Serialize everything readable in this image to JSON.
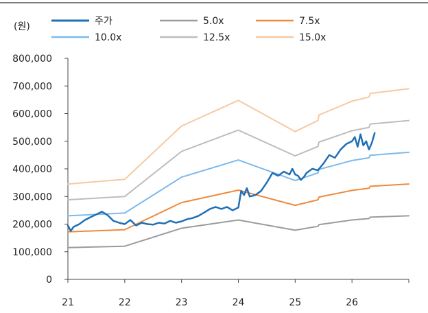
{
  "chart_data": {
    "type": "line",
    "unit_label": "(원)",
    "x_ticks": [
      "21",
      "22",
      "23",
      "24",
      "25",
      "26"
    ],
    "y_ticks": [
      "800,000",
      "700,000",
      "600,000",
      "500,000",
      "400,000",
      "300,000",
      "200,000",
      "100,000",
      "0"
    ],
    "ylim": [
      0,
      800000
    ],
    "xlim": [
      2021,
      2027
    ],
    "grid": false,
    "legend_position": "top",
    "series": [
      {
        "name": "주가",
        "color": "#1f6fb5",
        "width": 2.5,
        "x": [
          2021.0,
          2021.05,
          2021.1,
          2021.2,
          2021.3,
          2021.4,
          2021.5,
          2021.6,
          2021.7,
          2021.8,
          2021.9,
          2022.0,
          2022.1,
          2022.2,
          2022.3,
          2022.4,
          2022.5,
          2022.6,
          2022.7,
          2022.8,
          2022.9,
          2023.0,
          2023.1,
          2023.2,
          2023.3,
          2023.4,
          2023.5,
          2023.6,
          2023.7,
          2023.8,
          2023.9,
          2024.0,
          2024.05,
          2024.1,
          2024.15,
          2024.2,
          2024.3,
          2024.4,
          2024.5,
          2024.6,
          2024.7,
          2024.8,
          2024.9,
          2024.95,
          2025.0,
          2025.05,
          2025.1,
          2025.15,
          2025.2,
          2025.3,
          2025.4,
          2025.5,
          2025.6,
          2025.7,
          2025.8,
          2025.9,
          2026.0,
          2026.05,
          2026.1,
          2026.15,
          2026.2,
          2026.25,
          2026.3,
          2026.35,
          2026.4
        ],
        "values": [
          195000,
          175000,
          190000,
          200000,
          215000,
          225000,
          235000,
          245000,
          232000,
          212000,
          205000,
          200000,
          215000,
          195000,
          205000,
          200000,
          198000,
          205000,
          202000,
          212000,
          205000,
          210000,
          218000,
          222000,
          230000,
          242000,
          255000,
          262000,
          255000,
          262000,
          250000,
          260000,
          320000,
          305000,
          330000,
          300000,
          305000,
          320000,
          350000,
          385000,
          375000,
          390000,
          380000,
          400000,
          380000,
          375000,
          360000,
          370000,
          385000,
          400000,
          395000,
          420000,
          450000,
          440000,
          470000,
          490000,
          500000,
          515000,
          480000,
          525000,
          485000,
          500000,
          470000,
          495000,
          530000
        ]
      },
      {
        "name": "5.0x",
        "color": "#9b9b9b",
        "width": 2,
        "x": [
          2021.0,
          2022.0,
          2023.0,
          2024.0,
          2025.0,
          2025.4,
          2025.42,
          2026.0,
          2026.3,
          2026.32,
          2027.0
        ],
        "values": [
          115000,
          120000,
          185000,
          215000,
          178000,
          192000,
          198000,
          215000,
          220000,
          225000,
          230000
        ]
      },
      {
        "name": "7.5x",
        "color": "#ee8a3c",
        "width": 2,
        "x": [
          2021.0,
          2022.0,
          2023.0,
          2024.0,
          2025.0,
          2025.4,
          2025.42,
          2026.0,
          2026.3,
          2026.32,
          2027.0
        ],
        "values": [
          172000,
          180000,
          278000,
          323000,
          268000,
          288000,
          298000,
          322000,
          330000,
          337000,
          345000
        ]
      },
      {
        "name": "10.0x",
        "color": "#7cb9ec",
        "width": 2,
        "x": [
          2021.0,
          2022.0,
          2023.0,
          2024.0,
          2025.0,
          2025.4,
          2025.42,
          2026.0,
          2026.3,
          2026.32,
          2027.0
        ],
        "values": [
          230000,
          240000,
          370000,
          432000,
          358000,
          385000,
          398000,
          430000,
          440000,
          449000,
          460000
        ]
      },
      {
        "name": "12.5x",
        "color": "#bdbdbd",
        "width": 2,
        "x": [
          2021.0,
          2022.0,
          2023.0,
          2024.0,
          2025.0,
          2025.4,
          2025.42,
          2026.0,
          2026.3,
          2026.32,
          2027.0
        ],
        "values": [
          288000,
          300000,
          463000,
          540000,
          447000,
          481000,
          497000,
          538000,
          550000,
          562000,
          575000
        ]
      },
      {
        "name": "15.0x",
        "color": "#f6c9a0",
        "width": 2,
        "x": [
          2021.0,
          2022.0,
          2023.0,
          2024.0,
          2025.0,
          2025.4,
          2025.42,
          2026.0,
          2026.3,
          2026.32,
          2027.0
        ],
        "values": [
          345000,
          362000,
          555000,
          648000,
          535000,
          575000,
          595000,
          645000,
          660000,
          673000,
          690000
        ]
      }
    ]
  }
}
